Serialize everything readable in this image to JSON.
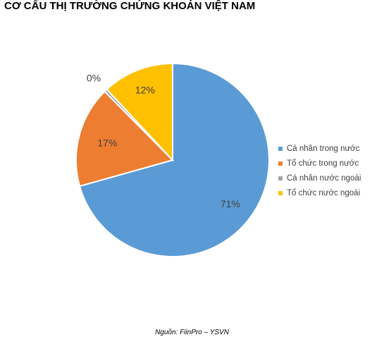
{
  "chart_data": {
    "type": "pie",
    "title": "CƠ CẤU THỊ TRƯỜNG CHỨNG KHOÁN VIỆT NAM",
    "categories": [
      "Cá nhân trong nước",
      "Tổ chức trong nước",
      "Cá nhân nước ngoài",
      "Tổ chức nước ngoài"
    ],
    "values": [
      71,
      17,
      0.5,
      12
    ],
    "labels": [
      "71%",
      "17%",
      "0%",
      "12%"
    ],
    "colors": [
      "#5B9BD5",
      "#ED7D31",
      "#A5A5A5",
      "#FFC000"
    ],
    "legend_position": "right",
    "start_angle": "12 o'clock, clockwise"
  },
  "source": "Nguồn: FiinPro – YSVN"
}
